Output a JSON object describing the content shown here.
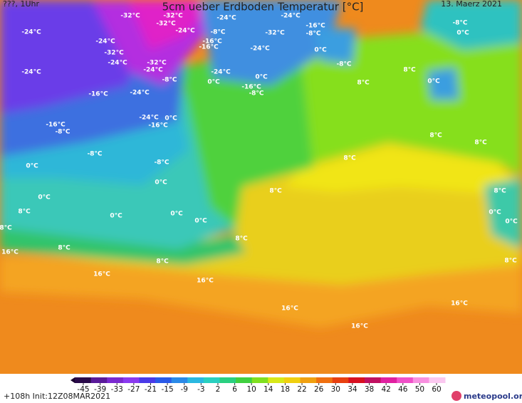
{
  "header": {
    "run": "???, 1Uhr",
    "title": "5cm ueber Erdboden Temperatur [°C]",
    "date": "13. Maerz 2021"
  },
  "map": {
    "labels": [
      "-32°C",
      "-32°C",
      "-32°C",
      "-24°C",
      "-24°C",
      "-16°C",
      "-24°C",
      "-24°C",
      "-24°C",
      "-8°C",
      "-32°C",
      "-8°C",
      "-16°C",
      "-16°C",
      "-24°C",
      "0°C",
      "-8°C",
      "0°C",
      "-32°C",
      "-24°C",
      "-32°C",
      "-24°C",
      "-8°C",
      "8°C",
      "-24°C",
      "-24°C",
      "0°C",
      "-8°C",
      "0°C",
      "8°C",
      "0°C",
      "-16°C",
      "-8°C",
      "-16°C",
      "-24°C",
      "-24°C",
      "0°C",
      "-16°C",
      "-16°C",
      "-8°C",
      "8°C",
      "8°C",
      "-8°C",
      "8°C",
      "-8°C",
      "0°C",
      "0°C",
      "8°C",
      "8°C",
      "0°C",
      "8°C",
      "0°C",
      "0°C",
      "0°C",
      "0°C",
      "0°C",
      "8°C",
      "8°C",
      "16°C",
      "8°C",
      "8°C",
      "8°C",
      "16°C",
      "16°C",
      "16°C",
      "16°C",
      "16°C"
    ]
  },
  "legend": {
    "ticks": [
      -45,
      -39,
      -33,
      -27,
      -21,
      -15,
      -9,
      -3,
      2,
      6,
      10,
      14,
      18,
      22,
      26,
      30,
      34,
      38,
      42,
      46,
      50,
      60
    ]
  },
  "footer": {
    "forecast": "+108h Init:12Z08MAR2021",
    "logo": "meteopool.org"
  }
}
